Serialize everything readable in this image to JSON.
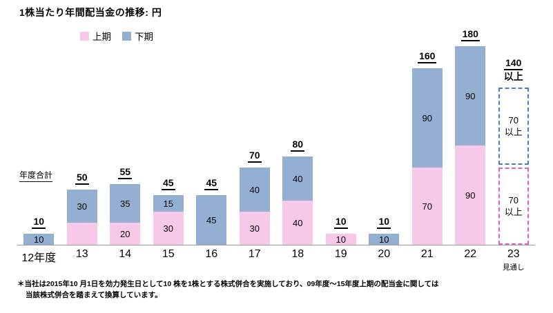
{
  "title": "1株当たり年間配当金の推移: 円",
  "legend": {
    "first_half": "上期",
    "second_half": "下期"
  },
  "annual_total_label": "年度合計",
  "footnote": {
    "line1": "＊当社は2015年10 月1日を効力発生日として10 株を1株とする株式併合を実施しており、09年度～15年度上期の配当金に関しては",
    "line2": "当該株式併合を踏まえて換算しています。"
  },
  "colors": {
    "first_half": "#F7C8E7",
    "second_half": "#93AFD1",
    "forecast_second_half_border": "#4A7EBB",
    "forecast_first_half_border": "#E05FC4",
    "axis": "#9A9A9A",
    "text": "#000000"
  },
  "chart_data": {
    "type": "bar",
    "stacked": true,
    "unit": "円",
    "title": "1株当たり年間配当金の推移: 円",
    "series_names": [
      "上期",
      "下期"
    ],
    "legend_position": "top",
    "ylim": [
      0,
      190
    ],
    "categories": [
      "12年度",
      "13",
      "14",
      "15",
      "16",
      "17",
      "18",
      "19",
      "20",
      "21",
      "22",
      "23"
    ],
    "bars": [
      {
        "category": "12年度",
        "first_half": 0,
        "second_half": 10,
        "total_label": "10",
        "labels": {
          "second_half": "10"
        }
      },
      {
        "category": "13",
        "first_half": 20,
        "second_half": 30,
        "total_label": "50",
        "labels": {
          "second_half": "30"
        }
      },
      {
        "category": "14",
        "first_half": 20,
        "second_half": 35,
        "total_label": "55",
        "labels": {
          "first_half": "20",
          "second_half": "35"
        }
      },
      {
        "category": "15",
        "first_half": 30,
        "second_half": 15,
        "total_label": "45",
        "labels": {
          "first_half": "30",
          "second_half": "15"
        }
      },
      {
        "category": "16",
        "first_half": 0,
        "second_half": 45,
        "total_label": "45",
        "labels": {
          "second_half": "45"
        }
      },
      {
        "category": "17",
        "first_half": 30,
        "second_half": 40,
        "total_label": "70",
        "labels": {
          "first_half": "30",
          "second_half": "40"
        }
      },
      {
        "category": "18",
        "first_half": 40,
        "second_half": 40,
        "total_label": "80",
        "labels": {
          "first_half": "40",
          "second_half": "40"
        }
      },
      {
        "category": "19",
        "first_half": 10,
        "second_half": 0,
        "total_label": "10",
        "labels": {
          "first_half": "10"
        }
      },
      {
        "category": "20",
        "first_half": 0,
        "second_half": 10,
        "total_label": "10",
        "labels": {
          "second_half": "10"
        }
      },
      {
        "category": "21",
        "first_half": 70,
        "second_half": 90,
        "total_label": "160",
        "labels": {
          "first_half": "70",
          "second_half": "90"
        }
      },
      {
        "category": "22",
        "first_half": 90,
        "second_half": 90,
        "total_label": "180",
        "labels": {
          "first_half": "90",
          "second_half": "90"
        }
      }
    ],
    "forecast": {
      "category": "23",
      "category_note": "見通し",
      "total_label": "140",
      "total_note": "以上",
      "segments": [
        {
          "series": "下期",
          "value": 70,
          "label": "70",
          "note": "以上"
        },
        {
          "series": "上期",
          "value": 70,
          "label": "70",
          "note": "以上"
        }
      ]
    }
  }
}
